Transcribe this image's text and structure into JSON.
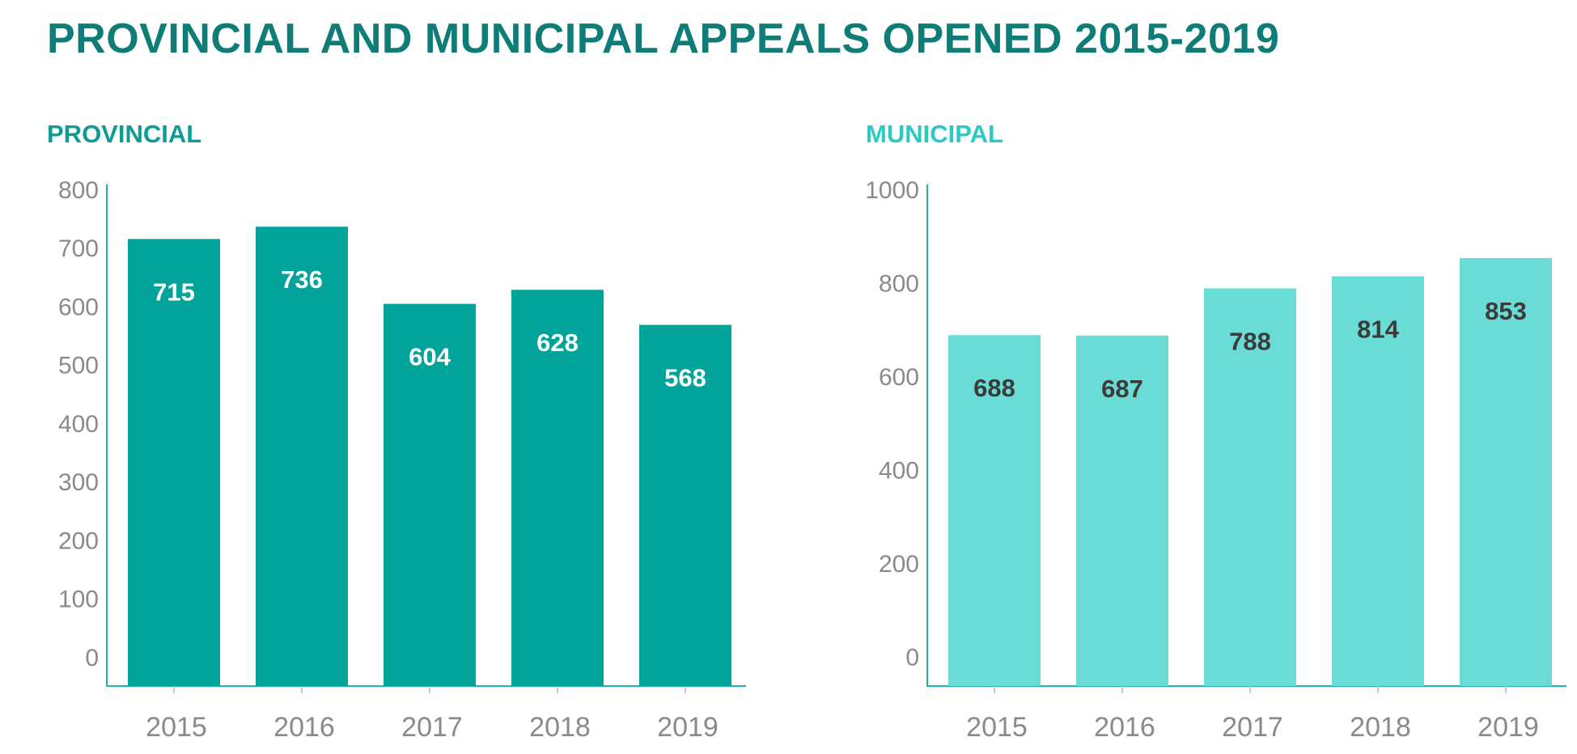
{
  "page": {
    "title": "PROVINCIAL AND MUNICIPAL APPEALS OPENED 2015-2019"
  },
  "colors": {
    "title": "#0e7c77",
    "provincial_bar": "#02a39a",
    "provincial_heading": "#0e9c93",
    "provincial_label": "#ffffff",
    "municipal_bar": "#6adcd6",
    "municipal_heading": "#2ccac3",
    "municipal_label": "#3b3b3b",
    "axis": "#1fb1a9",
    "tick_text": "#8a8a8a"
  },
  "chart_data": [
    {
      "type": "bar",
      "title": "PROVINCIAL",
      "xlabel": "",
      "ylabel": "",
      "categories": [
        "2015",
        "2016",
        "2017",
        "2018",
        "2019"
      ],
      "values": [
        715,
        736,
        604,
        628,
        568
      ],
      "yticks": [
        0,
        100,
        200,
        300,
        400,
        500,
        600,
        700,
        800
      ],
      "ylim": [
        -50,
        800
      ],
      "grid": false,
      "data_labels": true
    },
    {
      "type": "bar",
      "title": "MUNICIPAL",
      "xlabel": "",
      "ylabel": "",
      "categories": [
        "2015",
        "2016",
        "2017",
        "2018",
        "2019"
      ],
      "values": [
        688,
        687,
        788,
        814,
        853
      ],
      "yticks": [
        0,
        200,
        400,
        600,
        800,
        1000
      ],
      "ylim": [
        -63,
        1000
      ],
      "grid": false,
      "data_labels": true
    }
  ]
}
